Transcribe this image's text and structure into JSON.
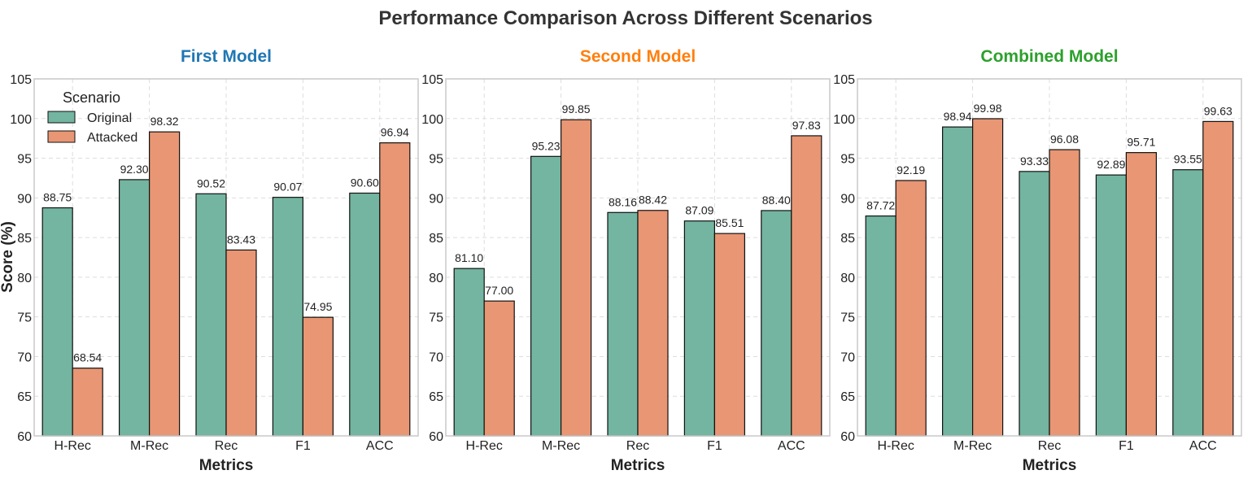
{
  "chart_data": {
    "type": "bar",
    "title": "Performance Comparison Across Different Scenarios",
    "ylabel": "Score (%)",
    "xlabel": "Metrics",
    "ylim": [
      60,
      105
    ],
    "yticks": [
      60,
      65,
      70,
      75,
      80,
      85,
      90,
      95,
      100,
      105
    ],
    "grid": true,
    "legend": {
      "title": "Scenario",
      "placement": "top-left",
      "panel": 0,
      "entries": [
        "Original",
        "Attacked"
      ]
    },
    "colors": {
      "Original": "#73b5a0",
      "Attacked": "#e89674"
    },
    "categories": [
      "H-Rec",
      "M-Rec",
      "Rec",
      "F1",
      "ACC"
    ],
    "panels": [
      {
        "title": "First Model",
        "title_color": "#1f77b4",
        "series": [
          {
            "name": "Original",
            "values": [
              88.75,
              92.3,
              90.52,
              90.07,
              90.6
            ],
            "labels": [
              "88.75",
              "92.30",
              "90.52",
              "90.07",
              "90.60"
            ]
          },
          {
            "name": "Attacked",
            "values": [
              68.54,
              98.32,
              83.43,
              74.95,
              96.94
            ],
            "labels": [
              "68.54",
              "98.32",
              "83.43",
              "74.95",
              "96.94"
            ]
          }
        ]
      },
      {
        "title": "Second Model",
        "title_color": "#ff7f0e",
        "series": [
          {
            "name": "Original",
            "values": [
              81.1,
              95.23,
              88.16,
              87.09,
              88.4
            ],
            "labels": [
              "81.10",
              "95.23",
              "88.16",
              "87.09",
              "88.40"
            ]
          },
          {
            "name": "Attacked",
            "values": [
              77.0,
              99.85,
              88.42,
              85.51,
              97.83
            ],
            "labels": [
              "77.00",
              "99.85",
              "88.42",
              "85.51",
              "97.83"
            ]
          }
        ]
      },
      {
        "title": "Combined Model",
        "title_color": "#2ca02c",
        "series": [
          {
            "name": "Original",
            "values": [
              87.72,
              98.94,
              93.33,
              92.89,
              93.55
            ],
            "labels": [
              "87.72",
              "98.94",
              "93.33",
              "92.89",
              "93.55"
            ]
          },
          {
            "name": "Attacked",
            "values": [
              92.19,
              99.98,
              96.08,
              95.71,
              99.63
            ],
            "labels": [
              "92.19",
              "99.98",
              "96.08",
              "95.71",
              "99.63"
            ]
          }
        ]
      }
    ]
  }
}
